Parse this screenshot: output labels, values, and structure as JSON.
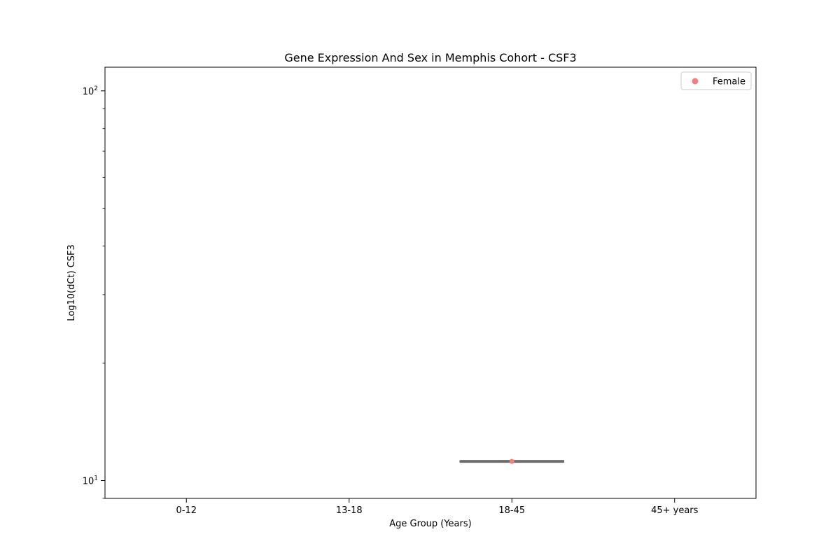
{
  "chart_data": {
    "type": "box",
    "title": "Gene Expression And Sex in Memphis Cohort - CSF3",
    "xlabel": "Age Group (Years)",
    "ylabel": "Log10(dCt) CSF3",
    "yscale": "log",
    "ylim": [
      9,
      115
    ],
    "categories": [
      "0-12",
      "13-18",
      "18-45",
      "45+ years"
    ],
    "y_major_ticks": [
      {
        "value": 10,
        "base": "10",
        "exp": "1"
      },
      {
        "value": 100,
        "base": "10",
        "exp": "2"
      }
    ],
    "y_minor_ticks": [
      9,
      20,
      30,
      40,
      50,
      60,
      70,
      80,
      90
    ],
    "legend": {
      "placement": "top-right",
      "entries": [
        {
          "name": "Female",
          "color": "#f08080"
        }
      ]
    },
    "series": [
      {
        "name": "Female",
        "color": "#f08080",
        "box_color": "#6d6d6d",
        "boxes": [
          {
            "category": "18-45",
            "median": 11.2,
            "q1": 11.2,
            "q3": 11.2
          }
        ],
        "points": [
          {
            "category": "18-45",
            "y": 11.2
          }
        ]
      }
    ],
    "grid": false
  }
}
